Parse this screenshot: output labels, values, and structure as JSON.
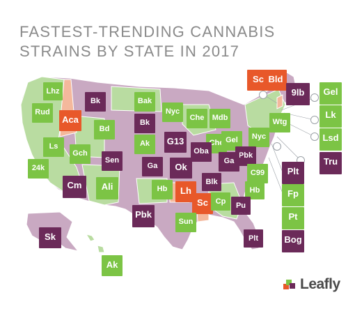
{
  "title": {
    "line1": "FASTEST-TRENDING CANNABIS",
    "line2": "STRAINS BY STATE IN 2017"
  },
  "brand": "Leafly",
  "colors": {
    "green": "#7cc445",
    "purple": "#6b2a59",
    "orange": "#e8582a",
    "map_green": "#b9dca1",
    "map_purple": "#c9a9c2",
    "map_orange": "#f4b89c"
  },
  "tiles": [
    {
      "sym": "Lhz",
      "color": "green"
    },
    {
      "sym": "Rud",
      "color": "green"
    },
    {
      "sym": "Aca",
      "color": "orange"
    },
    {
      "sym": "Bk",
      "color": "purple"
    },
    {
      "sym": "Bak",
      "color": "green"
    },
    {
      "sym": "Nyc",
      "color": "green"
    },
    {
      "sym": "Sc",
      "color": "orange"
    },
    {
      "sym": "Bld",
      "color": "orange"
    },
    {
      "sym": "9lb",
      "color": "purple"
    },
    {
      "sym": "Gel",
      "color": "green"
    },
    {
      "sym": "Lk",
      "color": "green"
    },
    {
      "sym": "Bd",
      "color": "green"
    },
    {
      "sym": "Bk",
      "color": "purple"
    },
    {
      "sym": "Che",
      "color": "green"
    },
    {
      "sym": "Mdb",
      "color": "green"
    },
    {
      "sym": "Wtg",
      "color": "green"
    },
    {
      "sym": "Lsd",
      "color": "green"
    },
    {
      "sym": "Ls",
      "color": "green"
    },
    {
      "sym": "Ak",
      "color": "green"
    },
    {
      "sym": "G13",
      "color": "purple"
    },
    {
      "sym": "Che",
      "color": "green"
    },
    {
      "sym": "Gel",
      "color": "green"
    },
    {
      "sym": "Nyc",
      "color": "green"
    },
    {
      "sym": "Tru",
      "color": "purple"
    },
    {
      "sym": "Gch",
      "color": "green"
    },
    {
      "sym": "Sen",
      "color": "purple"
    },
    {
      "sym": "Oba",
      "color": "purple"
    },
    {
      "sym": "Pbk",
      "color": "purple"
    },
    {
      "sym": "24k",
      "color": "green"
    },
    {
      "sym": "Ga",
      "color": "purple"
    },
    {
      "sym": "Ok",
      "color": "purple"
    },
    {
      "sym": "Ga",
      "color": "purple"
    },
    {
      "sym": "C99",
      "color": "green"
    },
    {
      "sym": "Plt",
      "color": "purple"
    },
    {
      "sym": "Cm",
      "color": "purple"
    },
    {
      "sym": "Ali",
      "color": "green"
    },
    {
      "sym": "Blk",
      "color": "purple"
    },
    {
      "sym": "Hb",
      "color": "green"
    },
    {
      "sym": "Lh",
      "color": "orange"
    },
    {
      "sym": "Hb",
      "color": "green"
    },
    {
      "sym": "Fp",
      "color": "green"
    },
    {
      "sym": "Pu",
      "color": "purple"
    },
    {
      "sym": "Sc",
      "color": "orange"
    },
    {
      "sym": "Cp",
      "color": "green"
    },
    {
      "sym": "Pt",
      "color": "green"
    },
    {
      "sym": "Pbk",
      "color": "purple"
    },
    {
      "sym": "Sun",
      "color": "green"
    },
    {
      "sym": "Bog",
      "color": "purple"
    },
    {
      "sym": "Plt",
      "color": "purple"
    },
    {
      "sym": "Sk",
      "color": "purple"
    },
    {
      "sym": "Ak",
      "color": "green"
    }
  ]
}
